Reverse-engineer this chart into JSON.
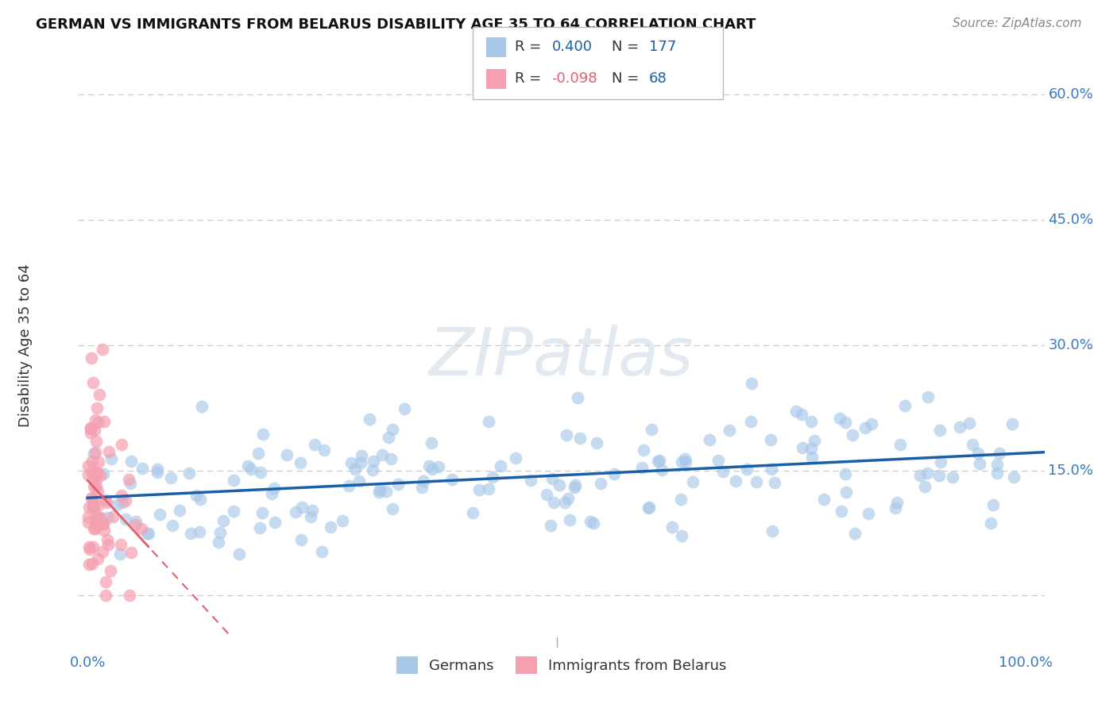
{
  "title": "GERMAN VS IMMIGRANTS FROM BELARUS DISABILITY AGE 35 TO 64 CORRELATION CHART",
  "source": "Source: ZipAtlas.com",
  "ylabel": "Disability Age 35 to 64",
  "xlim": [
    -0.01,
    1.02
  ],
  "ylim": [
    -0.05,
    0.65
  ],
  "xtick_positions": [
    0.0,
    1.0
  ],
  "xticklabels": [
    "0.0%",
    "100.0%"
  ],
  "ytick_positions": [
    0.0,
    0.15,
    0.3,
    0.45,
    0.6
  ],
  "yticklabels": [
    "",
    "15.0%",
    "30.0%",
    "45.0%",
    "60.0%"
  ],
  "german_color": "#a8c8e8",
  "belarus_color": "#f4a0b0",
  "german_line_color": "#1a5fa8",
  "belarus_line_color": "#e06070",
  "R_german": 0.4,
  "N_german": 177,
  "R_belarus": -0.098,
  "N_belarus": 68,
  "grid_color": "#cccccc",
  "background_color": "#ffffff",
  "legend_german": "Germans",
  "legend_belarus": "Immigrants from Belarus"
}
